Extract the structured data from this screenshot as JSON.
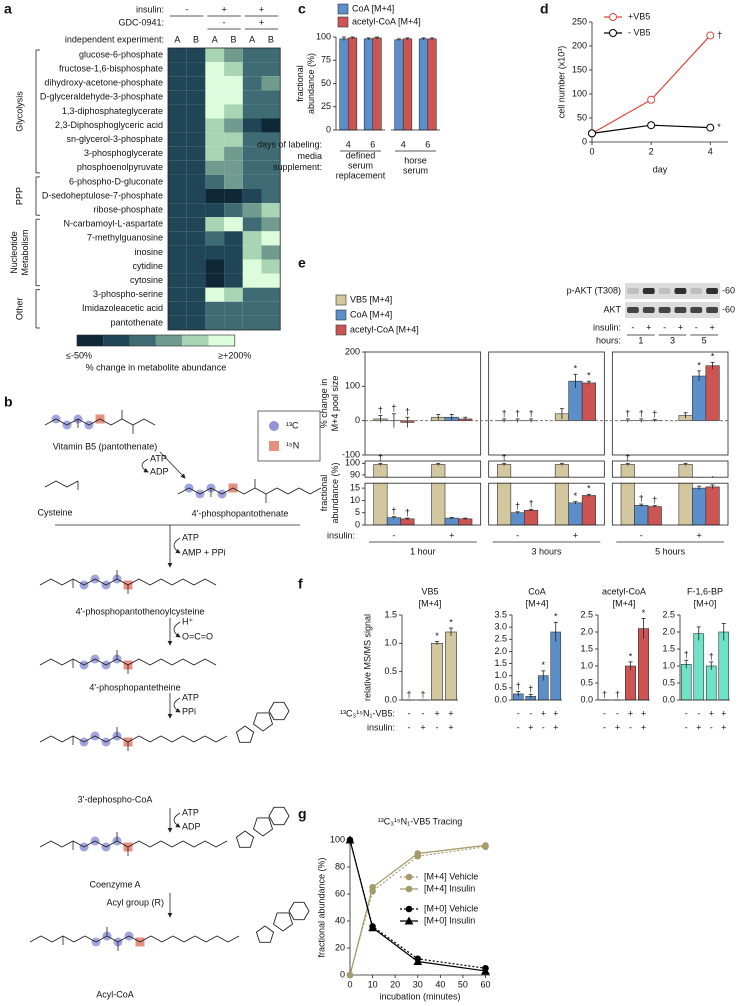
{
  "panel_labels": [
    "a",
    "b",
    "c",
    "d",
    "e",
    "f",
    "g"
  ],
  "chart_data": [
    {
      "type": "heatmap",
      "column_conditions": [
        {
          "name": "insulin:",
          "labels": [
            "-",
            "+",
            "+"
          ]
        },
        {
          "name": "GDC-0941:",
          "labels": [
            null,
            "-",
            "+"
          ]
        }
      ],
      "categories_label": "independent experiment:",
      "categories": [
        "A",
        "B",
        "A",
        "B",
        "A",
        "B"
      ],
      "groups": [
        {
          "name": "Glycolysis",
          "rows": [
            {
              "label": "glucose-6-phosphate",
              "values": [
                0,
                0,
                150,
                100,
                50,
                50
              ]
            },
            {
              "label": "fructose-1,6-bisphosphate",
              "values": [
                0,
                0,
                200,
                150,
                50,
                50
              ]
            },
            {
              "label": "dihydroxy-acetone-phosphate",
              "values": [
                0,
                0,
                200,
                200,
                50,
                100
              ]
            },
            {
              "label": "D-glyceraldehyde-3-phosphate",
              "values": [
                0,
                0,
                200,
                200,
                50,
                50
              ]
            },
            {
              "label": "1,3-diphosphateglycerate",
              "values": [
                0,
                0,
                200,
                150,
                50,
                50
              ]
            },
            {
              "label": "2,3-Diphosphoglyceric acid",
              "values": [
                0,
                0,
                150,
                100,
                0,
                -50
              ]
            },
            {
              "label": "sn-glycerol-3-phosphate",
              "values": [
                0,
                0,
                150,
                150,
                50,
                50
              ]
            },
            {
              "label": "3-phosphoglycerate",
              "values": [
                0,
                0,
                150,
                100,
                50,
                50
              ]
            },
            {
              "label": "phosphoenolpyruvate",
              "values": [
                0,
                0,
                100,
                100,
                50,
                50
              ]
            }
          ]
        },
        {
          "name": "PPP",
          "rows": [
            {
              "label": "6-phospho-D-gluconate",
              "values": [
                0,
                0,
                50,
                100,
                50,
                50
              ]
            },
            {
              "label": "D-sedoheptulose-7-phosphate",
              "values": [
                0,
                0,
                -50,
                -50,
                0,
                50
              ]
            },
            {
              "label": "ribose-phosphate",
              "values": [
                0,
                0,
                0,
                50,
                100,
                150
              ]
            }
          ]
        },
        {
          "name": [
            "Nucleotide",
            "Metabolism"
          ],
          "rows": [
            {
              "label": "N-carbamoyl-L-aspartate",
              "values": [
                0,
                0,
                150,
                200,
                50,
                100
              ]
            },
            {
              "label": "7-methylguanosine",
              "values": [
                0,
                0,
                50,
                0,
                150,
                200
              ]
            },
            {
              "label": "inosine",
              "values": [
                0,
                0,
                0,
                0,
                150,
                100
              ]
            },
            {
              "label": "cytidine",
              "values": [
                0,
                0,
                -50,
                0,
                200,
                150
              ]
            },
            {
              "label": "cytosine",
              "values": [
                0,
                0,
                -50,
                0,
                200,
                200
              ]
            }
          ]
        },
        {
          "name": "Other",
          "rows": [
            {
              "label": "3-phospho-serine",
              "values": [
                0,
                0,
                200,
                150,
                50,
                50
              ]
            },
            {
              "label": "Imidazoleacetic acid",
              "values": [
                0,
                0,
                50,
                50,
                50,
                50
              ]
            },
            {
              "label": "pantothenate",
              "values": [
                0,
                0,
                50,
                50,
                50,
                50
              ]
            }
          ]
        }
      ],
      "color_scale": {
        "values": [
          -50,
          0,
          50,
          100,
          150,
          200
        ],
        "colors": [
          "#0f2838",
          "#1f4556",
          "#3f6c74",
          "#729b8f",
          "#aad5b4",
          "#ddfcdc"
        ],
        "min_label": "≤-50%",
        "max_label": "≥+200%",
        "label": "% change in metabolite abundance"
      }
    },
    {
      "type": "bar",
      "ylabel": [
        "fractional",
        "abundance (%)"
      ],
      "ylim": [
        0,
        100
      ],
      "yticks": [
        0,
        25,
        50,
        75,
        100
      ],
      "categories_label": "days of labeling:",
      "categories": [
        "4",
        "6",
        "4",
        "6"
      ],
      "category_groups": {
        "label": [
          "media",
          "supplement:"
        ],
        "names": [
          [
            "defined",
            "serum",
            "replacement"
          ],
          [
            "horse",
            "serum"
          ]
        ]
      },
      "series": [
        {
          "name": "CoA [M+4]",
          "color": "#5b8fc9",
          "values": [
            98,
            98,
            97,
            98
          ],
          "errors": [
            2,
            1,
            1,
            1
          ]
        },
        {
          "name": "acetyl-CoA [M+4]",
          "color": "#cc5553",
          "values": [
            99,
            99,
            98,
            98
          ],
          "errors": [
            1,
            1,
            1,
            1
          ]
        }
      ]
    },
    {
      "type": "line",
      "xlabel": "day",
      "ylabel": "cell number (x10³)",
      "x": [
        0,
        2,
        4
      ],
      "xlim": [
        0,
        4.6
      ],
      "xticks": [
        0,
        2,
        4
      ],
      "ylim": [
        0,
        250
      ],
      "yticks": [
        0,
        50,
        100,
        150,
        200,
        250
      ],
      "series": [
        {
          "name": "+VB5",
          "color": "#e2473f",
          "open": true,
          "values": [
            18,
            88,
            222
          ],
          "end_label": "†"
        },
        {
          "name": "- VB5",
          "color": "#000000",
          "open": true,
          "values": [
            18,
            35,
            30
          ],
          "end_label": "*"
        }
      ]
    },
    {
      "type": "bar",
      "ylabel": [
        "% change in",
        "M+4 pool size"
      ],
      "ylim": [
        -100,
        200
      ],
      "yticks": [
        -100,
        0,
        100,
        200
      ],
      "series": [
        {
          "name": "VB5 [M+4]",
          "color": "#d2c79f",
          "values": [
            5,
            10,
            0,
            20,
            0,
            15
          ],
          "errors": [
            10,
            8,
            5,
            15,
            5,
            8
          ],
          "labels": [
            "†",
            null,
            "†",
            null,
            "†",
            null
          ]
        },
        {
          "name": "CoA [M+4]",
          "color": "#5b8fc9",
          "values": [
            0,
            10,
            0,
            115,
            0,
            130
          ],
          "errors": [
            20,
            8,
            5,
            20,
            5,
            15
          ],
          "labels": [
            "†",
            null,
            "†",
            "*",
            "†",
            "*"
          ]
        },
        {
          "name": "acetyl-CoA [M+4]",
          "color": "#cc5553",
          "values": [
            -5,
            5,
            0,
            110,
            0,
            160
          ],
          "errors": [
            15,
            5,
            5,
            5,
            3,
            10
          ],
          "labels": [
            "†",
            null,
            "†",
            "*",
            "†",
            "*"
          ]
        }
      ]
    },
    {
      "type": "bar",
      "ylabel": [
        "fractional",
        "abundance (%)"
      ],
      "ylim": [
        0,
        102
      ],
      "ybreak": [
        17,
        88
      ],
      "yticks": [
        0,
        5,
        10,
        15,
        90,
        100
      ],
      "categories_label": "insulin:",
      "categories": [
        "-",
        "+",
        "-",
        "+",
        "-",
        "+"
      ],
      "category_groups": {
        "names": [
          "1 hour",
          "3 hours",
          "5 hours"
        ]
      },
      "series": [
        {
          "color": "#d2c79f",
          "values": [
            99,
            99,
            99,
            99,
            99,
            99
          ],
          "errors": [
            1,
            1,
            1,
            1,
            1,
            1
          ],
          "labels": [
            "†",
            null,
            "†",
            null,
            "†",
            null
          ]
        },
        {
          "color": "#5b8fc9",
          "values": [
            3,
            2.8,
            5,
            9,
            8,
            15
          ],
          "errors": [
            0.4,
            0.3,
            0.4,
            0.5,
            0.5,
            0.8
          ],
          "labels": [
            "†",
            null,
            "†",
            "*",
            "†",
            "*"
          ]
        },
        {
          "color": "#cc5553",
          "values": [
            2.5,
            2.5,
            6,
            12,
            7.5,
            15.5
          ],
          "errors": [
            0.3,
            0.3,
            0.4,
            0.5,
            0.4,
            0.8
          ],
          "labels": [
            "†",
            null,
            "†",
            "*",
            "†",
            "*"
          ]
        }
      ]
    },
    {
      "type": "bar",
      "title": [
        "VB5",
        "[M+4]"
      ],
      "ylabel": "relative MS/MS signal",
      "color": "#d2c79f",
      "ylim": [
        0,
        1.5
      ],
      "yticks": [
        {
          "value": 0,
          "label": "0.0"
        },
        {
          "value": 0.5,
          "label": "0.5"
        },
        {
          "value": 1,
          "label": "1.0"
        },
        {
          "value": 1.5,
          "label": "1.5"
        }
      ],
      "values": [
        0,
        0,
        1.0,
        1.2
      ],
      "errors": [
        0,
        0,
        0.03,
        0.07
      ],
      "labels": [
        "†",
        "†",
        "*",
        "*"
      ],
      "condition_labels": [
        "¹³C₃¹⁵N₁-VB5:",
        "insulin:"
      ],
      "conditions": [
        [
          "-",
          "-",
          "+",
          "+"
        ],
        [
          "-",
          "+",
          "-",
          "+"
        ]
      ]
    },
    {
      "type": "bar",
      "title": [
        "CoA",
        "[M+4]"
      ],
      "color": "#5b8fc9",
      "ylim": [
        0,
        3.5
      ],
      "yticks": [
        {
          "value": 0,
          "label": "0.0"
        },
        {
          "value": 0.5,
          "label": "0.5"
        },
        {
          "value": 1,
          "label": "1.0"
        },
        {
          "value": 1.5,
          "label": "1.5"
        },
        {
          "value": 2,
          "label": "2.0"
        },
        {
          "value": 2.5,
          "label": "2.5"
        },
        {
          "value": 3,
          "label": "3.0"
        },
        {
          "value": 3.5,
          "label": "3.5"
        }
      ],
      "values": [
        0.25,
        0.15,
        1.0,
        2.8
      ],
      "errors": [
        0.1,
        0.08,
        0.2,
        0.4
      ],
      "labels": [
        "†",
        "†",
        "*",
        "*"
      ],
      "conditions": [
        [
          "-",
          "-",
          "+",
          "+"
        ],
        [
          "-",
          "+",
          "-",
          "+"
        ]
      ]
    },
    {
      "type": "bar",
      "title": [
        "acetyl-CoA",
        "[M+4]"
      ],
      "color": "#cc5553",
      "ylim": [
        0,
        2.5
      ],
      "yticks": [
        {
          "value": 0,
          "label": "0.0"
        },
        {
          "value": 0.5,
          "label": "0.5"
        },
        {
          "value": 1,
          "label": "1.0"
        },
        {
          "value": 1.5,
          "label": "1.5"
        },
        {
          "value": 2,
          "label": "2.0"
        },
        {
          "value": 2.5,
          "label": "2.5"
        }
      ],
      "values": [
        0,
        0,
        1.0,
        2.1
      ],
      "errors": [
        0,
        0,
        0.12,
        0.3
      ],
      "labels": [
        "†",
        "†",
        "*",
        "*"
      ],
      "conditions": [
        [
          "-",
          "-",
          "+",
          "+"
        ],
        [
          "-",
          "+",
          "-",
          "+"
        ]
      ]
    },
    {
      "type": "bar",
      "title": [
        "F-1,6-BP",
        "[M+0]"
      ],
      "color": "#6ee3c8",
      "ylim": [
        0,
        2.5
      ],
      "yticks": [
        {
          "value": 0,
          "label": "0.0"
        },
        {
          "value": 0.5,
          "label": "0.5"
        },
        {
          "value": 1,
          "label": "1.0"
        },
        {
          "value": 1.5,
          "label": "1.5"
        },
        {
          "value": 2,
          "label": "2.0"
        },
        {
          "value": 2.5,
          "label": "2.5"
        }
      ],
      "values": [
        1.05,
        1.95,
        1.0,
        2.0
      ],
      "errors": [
        0.12,
        0.2,
        0.12,
        0.25
      ],
      "labels": [
        "†",
        null,
        "†",
        null
      ],
      "conditions": [
        [
          "-",
          "-",
          "+",
          "+"
        ],
        [
          "-",
          "+",
          "-",
          "+"
        ]
      ]
    },
    {
      "type": "line",
      "title": "¹³C₃¹⁵N₁-VB5 Tracing",
      "xlabel": "incubation (minutes)",
      "ylabel": "fractional abundance (%)",
      "x": [
        0,
        10,
        30,
        60
      ],
      "xlim": [
        0,
        62
      ],
      "xticks": [
        0,
        10,
        20,
        30,
        40,
        50,
        60
      ],
      "ylim": [
        0,
        100
      ],
      "yticks": [
        0,
        20,
        40,
        60,
        80,
        100
      ],
      "series": [
        {
          "name": "[M+4] Vehicle",
          "color": "#a59a6a",
          "dash": true,
          "values": [
            0,
            62,
            88,
            95
          ]
        },
        {
          "name": "[M+4] Insulin",
          "color": "#a59a6a",
          "values": [
            0,
            65,
            90,
            96
          ]
        },
        {
          "name": "[M+0] Vehicle",
          "color": "#000000",
          "dash": true,
          "values": [
            100,
            36,
            12,
            5
          ]
        },
        {
          "name": "[M+0] Insulin",
          "color": "#000000",
          "marker": "triangle",
          "values": [
            100,
            35,
            10,
            3
          ]
        }
      ]
    }
  ],
  "blot": {
    "rows": [
      {
        "label": "p-AKT (T308)",
        "marker": "-60"
      },
      {
        "label": "AKT",
        "marker": "-60"
      }
    ],
    "insulin_label": "insulin:",
    "insulin": [
      "-",
      "+",
      "-",
      "+",
      "-",
      "+"
    ],
    "hours_label": "hours:",
    "hours": [
      "1",
      "3",
      "5"
    ]
  },
  "pathway": {
    "legend": [
      "¹³C",
      "¹⁵N"
    ],
    "compounds": [
      "Vitamin B5 (pantothenate)",
      "Cysteine",
      "4'-phosphopantothenate",
      "4'-phosphopantothenoylcysteine",
      "4'-phosphopantetheine",
      "3'-dephospho-CoA",
      "Coenzyme A",
      "Acyl-CoA"
    ],
    "cofactors": [
      [
        "ATP",
        "ADP"
      ],
      [
        "ATP",
        "AMP + PPi"
      ],
      [
        "H⁺",
        "O=C=O"
      ],
      [
        "ATP",
        "PPi"
      ],
      [
        "ATP",
        "ADP"
      ],
      [
        "Acyl group (R)"
      ]
    ]
  }
}
